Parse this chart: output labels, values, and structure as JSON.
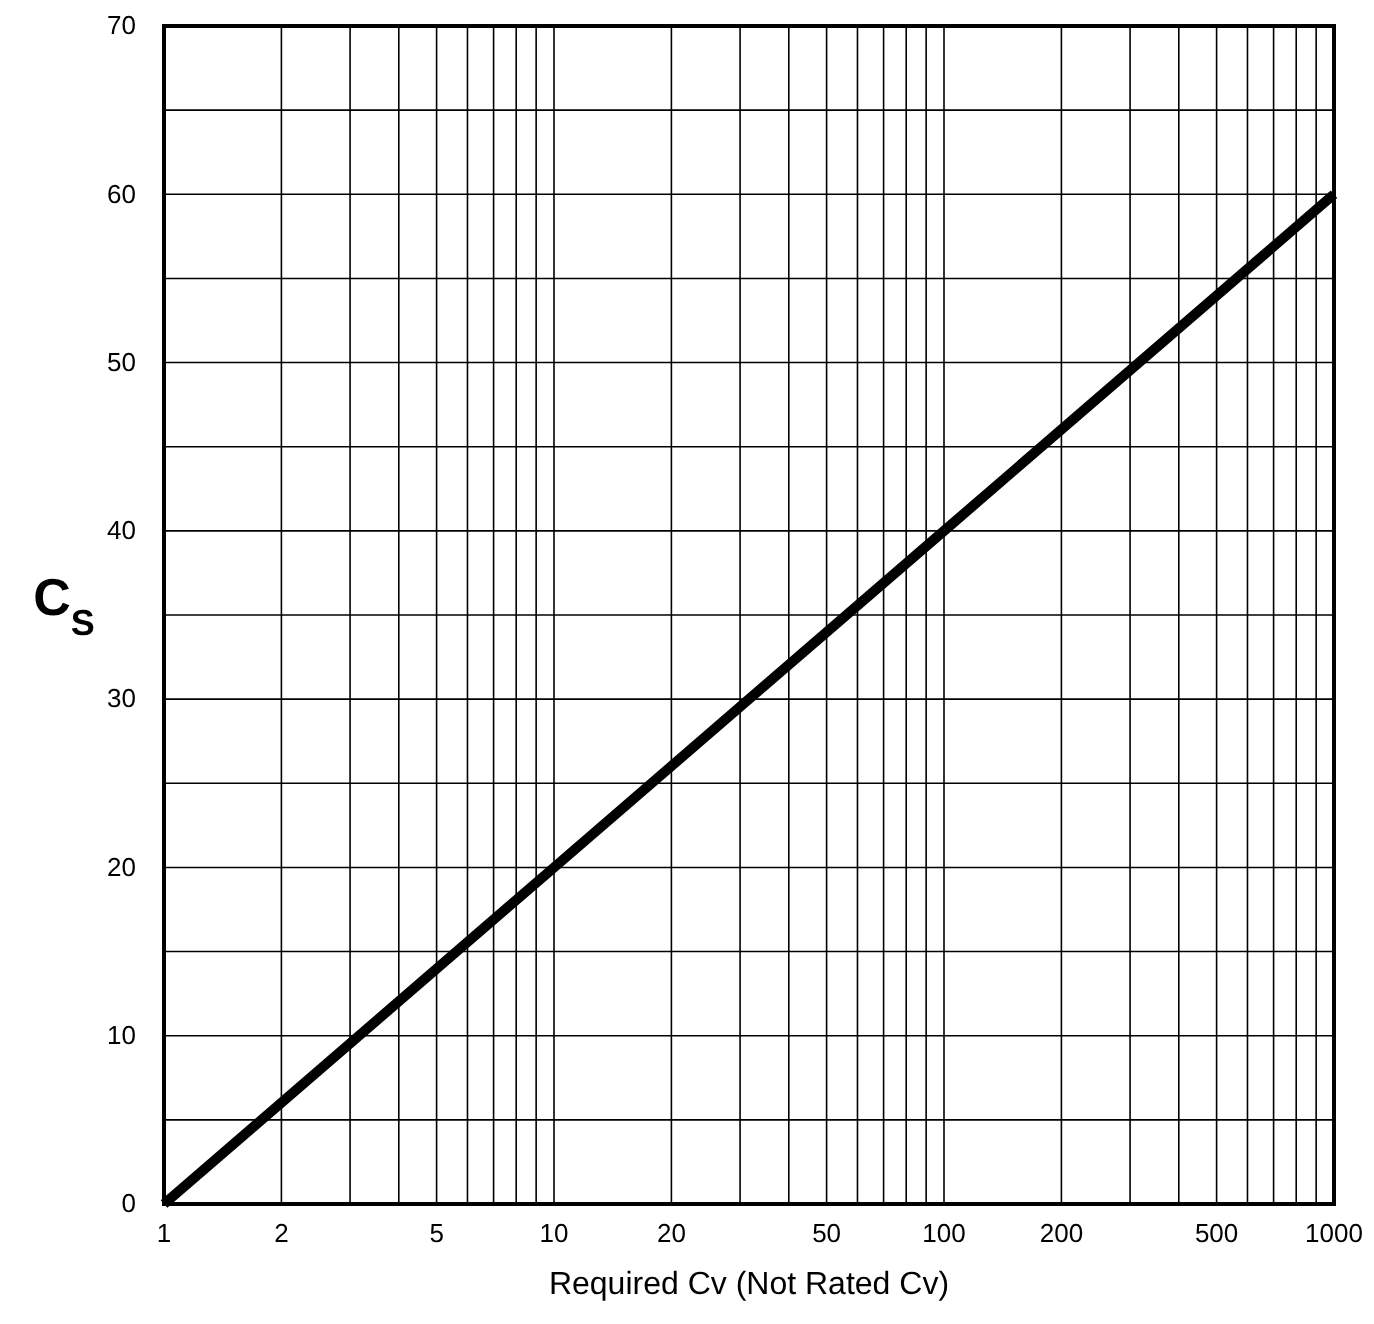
{
  "chart_data": {
    "type": "line",
    "xlabel": "Required Cv (Not Rated Cv)",
    "ylabel": "C$_{S}$",
    "x": [
      1,
      10,
      100,
      1000
    ],
    "series": [
      {
        "color": "#000000",
        "values": [
          0,
          20,
          40,
          60
        ]
      }
    ],
    "log": "x",
    "xlim": [
      1,
      1000
    ],
    "ylim": [
      0,
      70
    ],
    "xticks": [
      1,
      2,
      {
        "value": 3,
        "label": null
      },
      {
        "value": 4,
        "label": null
      },
      5,
      {
        "value": 6,
        "label": null
      },
      {
        "value": 7,
        "label": null
      },
      {
        "value": 8,
        "label": null
      },
      {
        "value": 9,
        "label": null
      },
      10,
      20,
      {
        "value": 30,
        "label": null
      },
      {
        "value": 40,
        "label": null
      },
      50,
      {
        "value": 60,
        "label": null
      },
      {
        "value": 70,
        "label": null
      },
      {
        "value": 80,
        "label": null
      },
      {
        "value": 90,
        "label": null
      },
      100,
      200,
      {
        "value": 300,
        "label": null
      },
      {
        "value": 400,
        "label": null
      },
      500,
      {
        "value": 600,
        "label": null
      },
      {
        "value": 700,
        "label": null
      },
      {
        "value": 800,
        "label": null
      },
      {
        "value": 900,
        "label": null
      },
      1000
    ],
    "yticks": [
      0,
      {
        "value": 5,
        "label": null
      },
      10,
      {
        "value": 15,
        "label": null
      },
      20,
      {
        "value": 25,
        "label": null
      },
      30,
      {
        "value": 35,
        "label": null
      },
      40,
      {
        "value": 45,
        "label": null
      },
      50,
      {
        "value": 55,
        "label": null
      },
      60,
      {
        "value": 65,
        "label": null
      },
      70
    ],
    "grid": true,
    "marker": "none",
    "line_style": "solid"
  }
}
